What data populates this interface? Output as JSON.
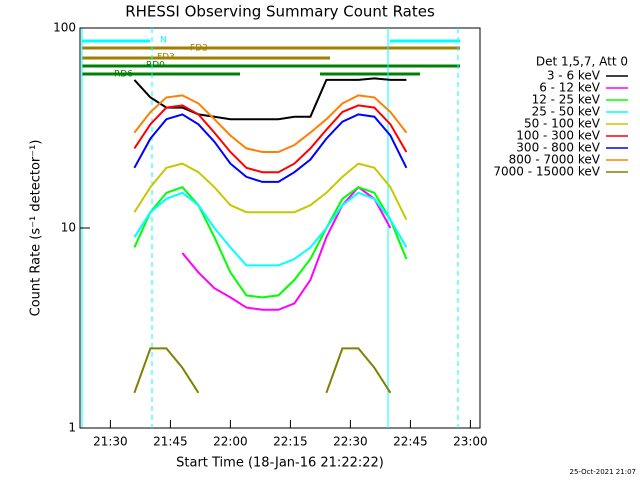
{
  "chart_data": {
    "type": "line",
    "title": "RHESSI Observing Summary Count Rates",
    "x_label": "Start Time (18-Jan-16 21:22:22)",
    "y_label": "Count Rate (s⁻¹ detector⁻¹)",
    "legend_title": "Det 1,5,7, Att 0",
    "footer": "25-Oct-2021 21:07",
    "annotations": [
      "N",
      "FD2",
      "FD3",
      "RD0",
      "RD6"
    ],
    "log_y": true,
    "legend": "right",
    "xlim": [
      1282.4,
      1382.4
    ],
    "xticks": [
      {
        "value": 1290,
        "label": "21:30"
      },
      {
        "value": 1305,
        "label": "21:45"
      },
      {
        "value": 1320,
        "label": "22:00"
      },
      {
        "value": 1335,
        "label": "22:15"
      },
      {
        "value": 1350,
        "label": "22:30"
      },
      {
        "value": 1365,
        "label": "22:45"
      },
      {
        "value": 1380,
        "label": "23:00"
      }
    ],
    "ylim": [
      1,
      100
    ],
    "yticks": [
      1,
      10,
      100
    ],
    "x": [
      1296,
      1300,
      1304,
      1308,
      1312,
      1316,
      1320,
      1324,
      1328,
      1332,
      1336,
      1340,
      1344,
      1348,
      1352,
      1356,
      1360,
      1364
    ],
    "series": [
      {
        "name": "3 - 6 keV",
        "color": "#000000",
        "values": [
          55,
          45,
          40,
          40,
          37,
          36,
          35,
          35,
          35,
          35,
          36,
          36,
          55,
          55,
          55,
          56,
          55,
          55
        ]
      },
      {
        "name": "6 - 12 keV",
        "color": "#ff00ff",
        "values": [
          null,
          null,
          null,
          7.5,
          6,
          5,
          4.5,
          4,
          3.9,
          3.9,
          4.2,
          5.5,
          9,
          13,
          16,
          14,
          10,
          null
        ]
      },
      {
        "name": "12 - 25 keV",
        "color": "#00ff00",
        "values": [
          8,
          12,
          15,
          16,
          13,
          9,
          6,
          4.6,
          4.5,
          4.6,
          5.5,
          7,
          10,
          14,
          16,
          15,
          11,
          7
        ]
      },
      {
        "name": "25 - 50 keV",
        "color": "#00ffff",
        "values": [
          9,
          12,
          14,
          15,
          13,
          10,
          8,
          6.5,
          6.5,
          6.5,
          7,
          8,
          10,
          13,
          15,
          14,
          11,
          8
        ]
      },
      {
        "name": "50 - 100 keV",
        "color": "#c8c800",
        "values": [
          12,
          16,
          20,
          21,
          19,
          16,
          13,
          12,
          12,
          12,
          12,
          13,
          15,
          18,
          21,
          20,
          16,
          11
        ]
      },
      {
        "name": "100 - 300 keV",
        "color": "#ff0000",
        "values": [
          25,
          33,
          40,
          41,
          37,
          30,
          24,
          20,
          19,
          19,
          21,
          25,
          31,
          38,
          41,
          40,
          33,
          24
        ]
      },
      {
        "name": "300 - 800 keV",
        "color": "#0000ff",
        "values": [
          20,
          28,
          35,
          37,
          33,
          27,
          21,
          18,
          17,
          17,
          19,
          22,
          28,
          34,
          37,
          36,
          29,
          20
        ]
      },
      {
        "name": "800 - 7000 keV",
        "color": "#ff8000",
        "values": [
          30,
          38,
          45,
          46,
          42,
          35,
          29,
          25,
          24,
          24,
          26,
          30,
          35,
          42,
          46,
          45,
          38,
          30
        ]
      },
      {
        "name": "7000 - 15000 keV",
        "color": "#808000",
        "values": [
          1.5,
          2.5,
          2.5,
          2,
          1.5,
          null,
          null,
          null,
          null,
          null,
          null,
          null,
          1.5,
          2.5,
          2.5,
          2,
          1.5,
          null
        ]
      }
    ]
  }
}
